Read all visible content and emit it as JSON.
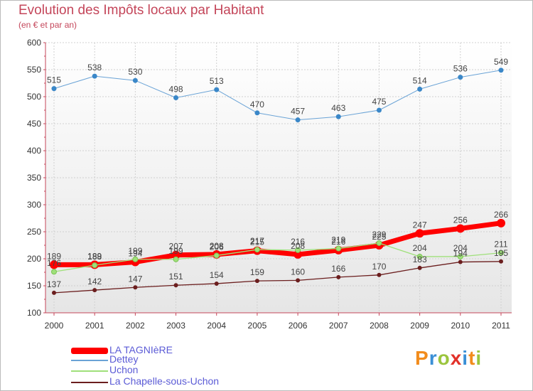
{
  "header": {
    "title": "Evolution des Impôts locaux par Habitant",
    "subtitle": "(en € et par an)"
  },
  "brand": {
    "text": "Proxiti",
    "colors": [
      "#f28c1c",
      "#3a8fd6",
      "#9bc53d",
      "#e2322a",
      "#3a8fd6",
      "#f28c1c",
      "#9bc53d"
    ]
  },
  "chart_data": {
    "type": "line",
    "x": [
      "2000",
      "2001",
      "2002",
      "2003",
      "2004",
      "2005",
      "2006",
      "2007",
      "2008",
      "2009",
      "2010",
      "2011"
    ],
    "ylim": [
      100,
      600
    ],
    "yticks": [
      "100",
      "150",
      "200",
      "250",
      "300",
      "350",
      "400",
      "450",
      "500",
      "550",
      "600"
    ],
    "grid": true,
    "legend_position": "bottom-left",
    "series": [
      {
        "name": "LA TAGNIèRE",
        "color": "#ff0000",
        "values": [
          189,
          189,
          194,
          207,
          208,
          215,
          208,
          216,
          225,
          247,
          256,
          266
        ],
        "labels": [
          "189",
          "189",
          "194",
          "207",
          "208",
          "215",
          "208",
          "216",
          "225",
          "247",
          "256",
          "266"
        ]
      },
      {
        "name": "Dettey",
        "color": "#6aa3d6",
        "values": [
          515,
          538,
          530,
          498,
          513,
          470,
          457,
          463,
          475,
          514,
          536,
          549
        ],
        "labels": [
          "515",
          "538",
          "530",
          "498",
          "513",
          "470",
          "457",
          "463",
          "475",
          "514",
          "536",
          "549"
        ]
      },
      {
        "name": "Uchon",
        "color": "#9fe07a",
        "values": [
          176,
          188,
          199,
          199,
          206,
          217,
          216,
          219,
          229,
          204,
          204,
          211
        ],
        "labels": [
          "176",
          "188",
          "199",
          "199",
          "206",
          "217",
          "216",
          "219",
          "229",
          "204",
          "204",
          "211"
        ]
      },
      {
        "name": "La Chapelle-sous-Uchon",
        "color": "#6b1e1e",
        "values": [
          137,
          142,
          147,
          151,
          154,
          159,
          160,
          166,
          170,
          183,
          194,
          195
        ],
        "labels": [
          "137",
          "142",
          "147",
          "151",
          "154",
          "159",
          "160",
          "166",
          "170",
          "183",
          "194",
          "195"
        ]
      }
    ]
  }
}
